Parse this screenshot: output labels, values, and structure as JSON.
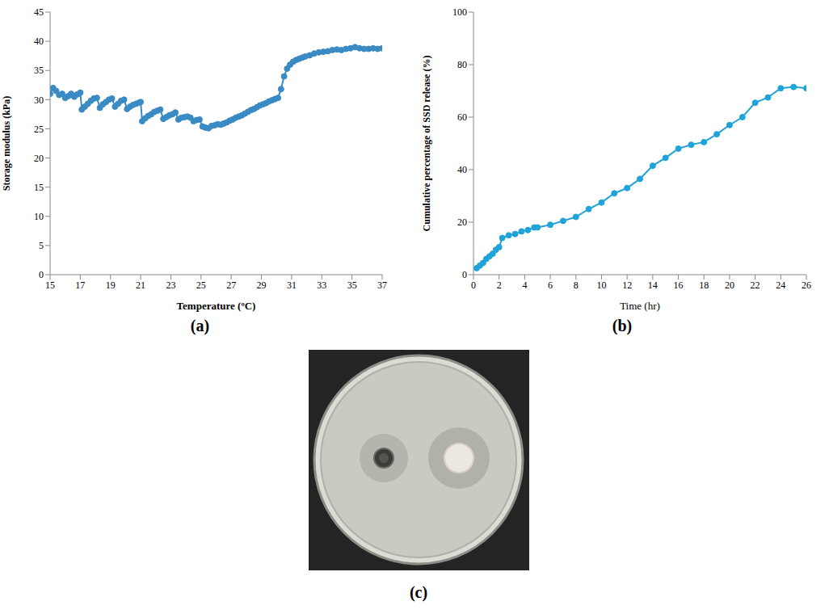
{
  "chart_data": [
    {
      "panel": "(a)",
      "type": "line",
      "xlabel": "Temperature (ºC)",
      "ylabel": "Storage modulus (kPa)",
      "color": "#3a8ac4",
      "marker": "circle",
      "line_style": "solid",
      "grid": false,
      "xlim": [
        15,
        37
      ],
      "xticks": [
        15,
        17,
        19,
        21,
        23,
        25,
        27,
        29,
        31,
        33,
        35,
        37
      ],
      "ylim": [
        0,
        45
      ],
      "yticks": [
        0,
        5,
        10,
        15,
        20,
        25,
        30,
        35,
        40,
        45
      ],
      "x": [
        15,
        15.2,
        15.4,
        15.6,
        15.8,
        16,
        16.2,
        16.4,
        16.6,
        16.8,
        17,
        17.1,
        17.3,
        17.5,
        17.7,
        17.9,
        18.1,
        18.3,
        18.5,
        18.7,
        18.9,
        19.1,
        19.3,
        19.5,
        19.7,
        19.9,
        20.1,
        20.3,
        20.5,
        20.7,
        20.9,
        21,
        21.1,
        21.3,
        21.5,
        21.7,
        21.9,
        22.1,
        22.3,
        22.5,
        22.7,
        22.9,
        23.1,
        23.3,
        23.5,
        23.7,
        23.9,
        24.1,
        24.3,
        24.5,
        24.7,
        24.9,
        25.1,
        25.3,
        25.5,
        25.7,
        25.9,
        26.1,
        26.3,
        26.5,
        26.7,
        26.9,
        27.1,
        27.3,
        27.5,
        27.7,
        27.9,
        28.1,
        28.3,
        28.5,
        28.7,
        28.9,
        29.1,
        29.3,
        29.5,
        29.7,
        29.9,
        30.1,
        30.3,
        30.5,
        30.7,
        30.9,
        31.1,
        31.3,
        31.5,
        31.7,
        31.9,
        32.2,
        32.5,
        32.8,
        33.1,
        33.4,
        33.7,
        34,
        34.3,
        34.6,
        34.9,
        35.2,
        35.5,
        35.8,
        36.1,
        36.4,
        36.7,
        37
      ],
      "values": [
        31,
        32,
        31.5,
        30.8,
        31,
        30.3,
        30.6,
        31,
        30.5,
        30.9,
        31.2,
        28.3,
        28.8,
        29.3,
        29.8,
        30.2,
        30.3,
        28.6,
        29.2,
        29.6,
        30,
        30.2,
        28.8,
        29.3,
        29.8,
        30,
        28.4,
        28.8,
        29.1,
        29.3,
        29.5,
        29.6,
        26.3,
        26.8,
        27.2,
        27.5,
        27.9,
        28.1,
        28.3,
        26.7,
        27,
        27.3,
        27.5,
        27.8,
        26.6,
        26.9,
        27,
        27.1,
        26.9,
        26.3,
        26.5,
        26.6,
        25.4,
        25.2,
        25.1,
        25.5,
        25.6,
        25.8,
        25.7,
        25.9,
        26.1,
        26.4,
        26.6,
        26.9,
        27.1,
        27.3,
        27.6,
        27.9,
        28.2,
        28.4,
        28.7,
        29,
        29.2,
        29.4,
        29.7,
        29.9,
        30.1,
        30.3,
        31.8,
        34,
        35.3,
        36,
        36.5,
        36.8,
        37,
        37.2,
        37.4,
        37.6,
        37.9,
        38.1,
        38.2,
        38.3,
        38.5,
        38.6,
        38.5,
        38.7,
        38.8,
        39,
        38.8,
        38.7,
        38.7,
        38.8,
        38.7,
        38.8
      ]
    },
    {
      "panel": "(b)",
      "type": "line",
      "xlabel": "Time (hr)",
      "ylabel": "Cumulative percentage of SSD release  (%)",
      "color": "#1fa3d8",
      "marker": "circle",
      "line_style": "solid",
      "grid": false,
      "xlim": [
        0,
        26
      ],
      "xticks": [
        0,
        2,
        4,
        6,
        8,
        10,
        12,
        14,
        16,
        18,
        20,
        22,
        24,
        26
      ],
      "ylim": [
        0,
        100
      ],
      "yticks": [
        0,
        20,
        40,
        60,
        80,
        100
      ],
      "x": [
        0.25,
        0.5,
        0.75,
        1,
        1.25,
        1.5,
        1.75,
        2,
        2.25,
        2.75,
        3.25,
        3.75,
        4.25,
        4.75,
        5,
        6,
        7,
        8,
        9,
        10,
        11,
        12,
        13,
        14,
        15,
        16,
        17,
        18,
        19,
        20,
        21,
        22,
        23,
        24,
        25,
        26
      ],
      "values": [
        2.5,
        3.5,
        4.5,
        6,
        7,
        8,
        9.5,
        10.5,
        14,
        15,
        15.5,
        16.5,
        17,
        18,
        18,
        19,
        20.5,
        22,
        25,
        27.5,
        31,
        33,
        36.5,
        41.5,
        44.5,
        48,
        49.5,
        50.5,
        53.5,
        57,
        60,
        65.5,
        67.5,
        71,
        71.5,
        71
      ]
    }
  ],
  "image": {
    "panel": "(c)"
  }
}
